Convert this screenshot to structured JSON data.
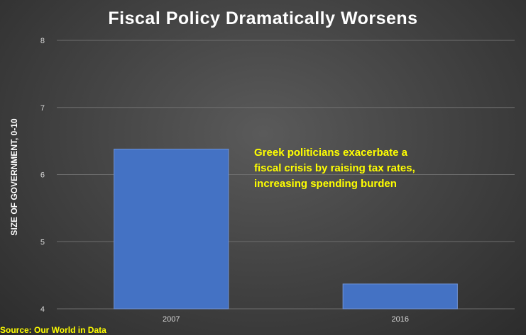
{
  "chart_data": {
    "type": "bar",
    "title": "Fiscal Policy Dramatically Worsens",
    "ylabel": "SIZE OF GOVERNMENT, 0-10",
    "xlabel": "",
    "categories": [
      "2007",
      "2016"
    ],
    "values": [
      6.38,
      4.37
    ],
    "ylim": [
      4,
      8
    ],
    "yticks": [
      4,
      5,
      6,
      7,
      8
    ],
    "grid": true,
    "bar_color": "#4472c4",
    "annotation": "Greek politicians exacerbate a fiscal crisis by raising tax rates, increasing spending burden",
    "source": "Source: Our World in Data"
  },
  "colors": {
    "title": "#ffffff",
    "annotation": "#ffff00",
    "source": "#ffff00",
    "gridline": "#6e6e6e"
  }
}
